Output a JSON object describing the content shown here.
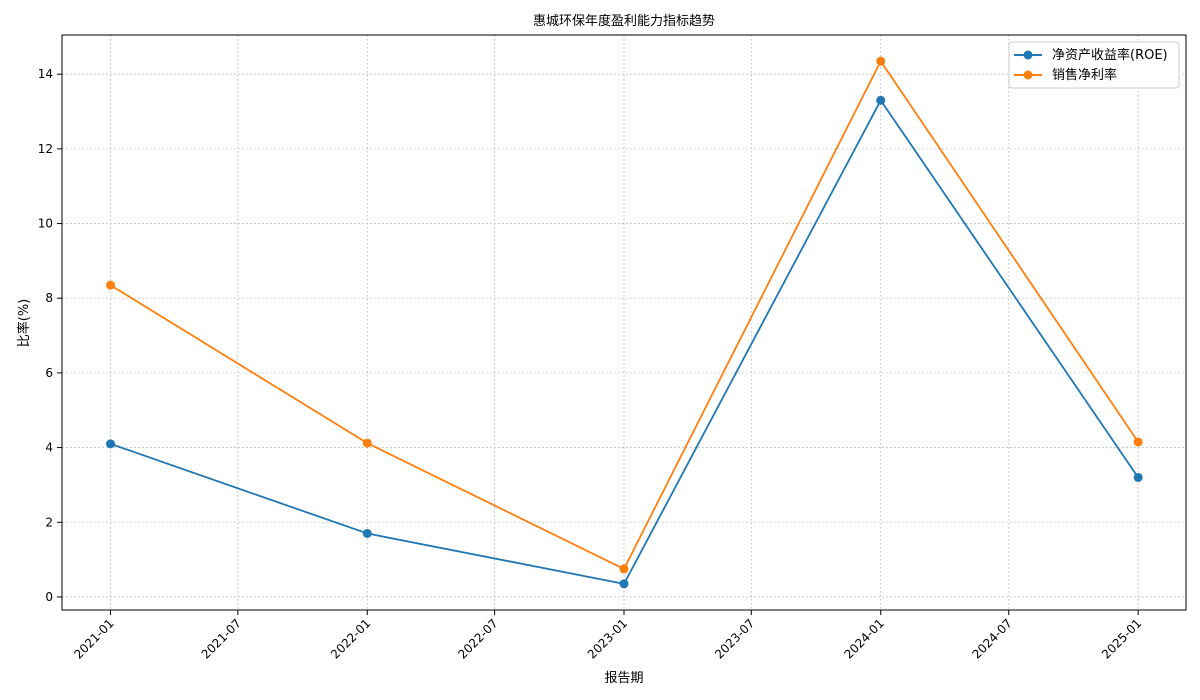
{
  "chart_data": {
    "type": "line",
    "title": "惠城环保年度盈利能力指标趋势",
    "xlabel": "报告期",
    "ylabel": "比率(%)",
    "x_ticks": [
      "2021-01",
      "2021-07",
      "2022-01",
      "2022-07",
      "2023-01",
      "2023-07",
      "2024-01",
      "2024-07",
      "2025-01"
    ],
    "y_ticks": [
      "0",
      "2",
      "4",
      "6",
      "8",
      "10",
      "12",
      "14"
    ],
    "ylim": [
      -0.35,
      15.05
    ],
    "xlim": [
      "2020-10-24",
      "2025-03-10"
    ],
    "grid": true,
    "grid_style": "dotted",
    "legend_position": "top-right",
    "x": [
      "2021-01-01",
      "2022-01-01",
      "2023-01-01",
      "2024-01-01",
      "2025-01-01"
    ],
    "series": [
      {
        "name": "净资产收益率(ROE)",
        "color": "#1f77b4",
        "values": [
          4.1,
          1.7,
          0.35,
          13.3,
          3.2
        ]
      },
      {
        "name": "销售净利率",
        "color": "#ff7f0e",
        "values": [
          8.35,
          4.12,
          0.75,
          14.35,
          4.15
        ]
      }
    ]
  }
}
